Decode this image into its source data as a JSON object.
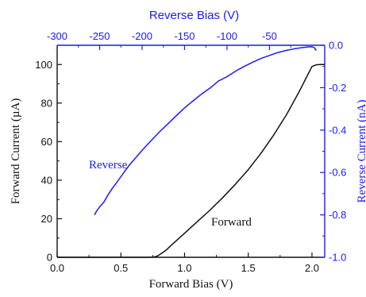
{
  "chart_data": {
    "type": "line",
    "colors": {
      "forward": "#111111",
      "reverse": "#1a1aff",
      "axes": "#111111",
      "right_axis": "#1a1aff"
    },
    "x_bottom": {
      "label": "Forward Bias (V)",
      "range": [
        0.0,
        2.1
      ],
      "ticks": [
        0.0,
        0.5,
        1.0,
        1.5,
        2.0
      ],
      "tick_labels": [
        "0.0",
        "0.5",
        "1.0",
        "1.5",
        "2.0"
      ]
    },
    "y_left": {
      "label": "Forward Current (µA)",
      "range": [
        0,
        110
      ],
      "ticks": [
        0,
        20,
        40,
        60,
        80,
        100
      ],
      "tick_labels": [
        "0",
        "20",
        "40",
        "60",
        "80",
        "100"
      ]
    },
    "x_top": {
      "label": "Reverse Bias (V)",
      "range": [
        -300,
        15
      ],
      "ticks": [
        -300,
        -250,
        -200,
        -150,
        -100,
        -50
      ],
      "tick_labels": [
        "-300",
        "-250",
        "-200",
        "-150",
        "-100",
        "-50"
      ]
    },
    "y_right": {
      "label": "Reverse Current (nA)",
      "range": [
        -1.0,
        0.0
      ],
      "ticks": [
        0.0,
        -0.2,
        -0.4,
        -0.6,
        -0.8,
        -1.0
      ],
      "tick_labels": [
        "0.0",
        "-0.2",
        "-0.4",
        "-0.6",
        "-0.8",
        "-1.0"
      ]
    },
    "annotations": [
      {
        "text": "Reverse",
        "series": "reverse"
      },
      {
        "text": "Forward",
        "series": "forward"
      }
    ],
    "series": [
      {
        "name": "Forward",
        "axes": "bottom-left",
        "x": [
          0.0,
          0.5,
          0.7,
          0.75,
          0.78,
          0.8,
          0.83,
          0.86,
          0.9,
          1.0,
          1.1,
          1.2,
          1.3,
          1.4,
          1.5,
          1.6,
          1.7,
          1.8,
          1.9,
          1.95,
          2.0,
          2.03,
          2.06,
          2.08,
          2.1
        ],
        "y": [
          0.0,
          0.0,
          0.0,
          0.1,
          0.5,
          1.2,
          2.5,
          4.0,
          6.5,
          12.5,
          18.5,
          24.5,
          31.0,
          38.0,
          45.5,
          54.0,
          63.5,
          74.0,
          86.0,
          92.5,
          99.0,
          99.8,
          100.0,
          100.0,
          100.0
        ]
      },
      {
        "name": "Reverse",
        "axes": "top-right",
        "x": [
          -256,
          -254,
          -250,
          -245,
          -240,
          -235,
          -230,
          -225,
          -220,
          -215,
          -210,
          -200,
          -190,
          -180,
          -170,
          -160,
          -150,
          -140,
          -130,
          -120,
          -110,
          -100,
          -90,
          -80,
          -70,
          -60,
          -50,
          -40,
          -30,
          -20,
          -10,
          -5,
          0,
          3,
          5
        ],
        "y": [
          -0.8,
          -0.785,
          -0.762,
          -0.74,
          -0.705,
          -0.675,
          -0.648,
          -0.62,
          -0.592,
          -0.565,
          -0.542,
          -0.495,
          -0.452,
          -0.41,
          -0.372,
          -0.333,
          -0.295,
          -0.262,
          -0.23,
          -0.202,
          -0.168,
          -0.148,
          -0.122,
          -0.1,
          -0.08,
          -0.062,
          -0.048,
          -0.034,
          -0.024,
          -0.016,
          -0.01,
          -0.008,
          -0.007,
          -0.012,
          -0.025
        ]
      }
    ]
  }
}
